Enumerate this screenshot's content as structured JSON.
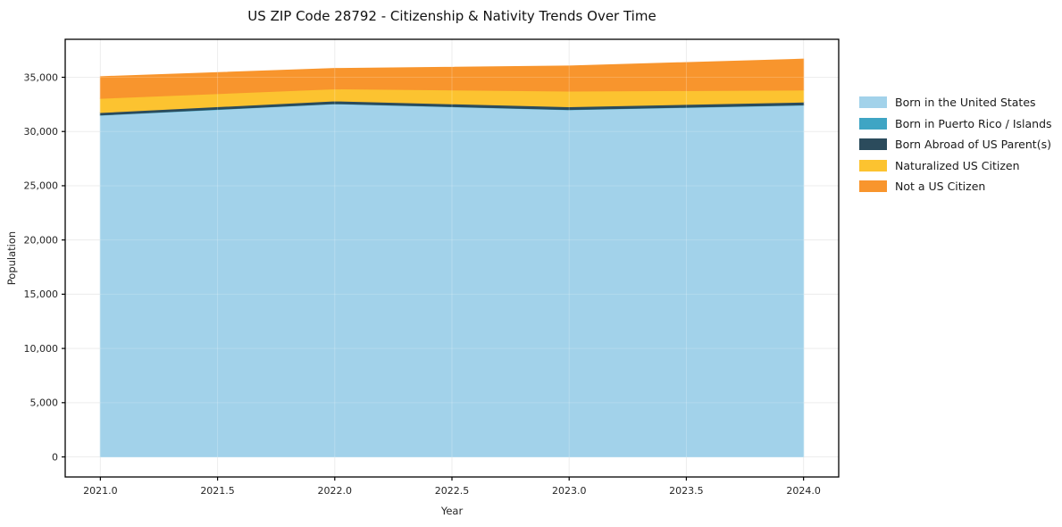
{
  "labels": {
    "title": "US ZIP Code 28792 - Citizenship & Nativity Trends Over Time",
    "xlabel": "Year",
    "ylabel": "Population"
  },
  "chart_data": {
    "type": "area",
    "stacked": true,
    "title": "US ZIP Code 28792 - Citizenship & Nativity Trends Over Time",
    "xlabel": "Year",
    "ylabel": "Population",
    "x": [
      2021,
      2022,
      2023,
      2024
    ],
    "series": [
      {
        "name": "Born in the United States",
        "color": "#a2d2ea",
        "values": [
          31500,
          32550,
          32000,
          32430
        ]
      },
      {
        "name": "Born in Puerto Rico / Islands",
        "color": "#3fa5c4",
        "values": [
          25,
          25,
          25,
          25
        ]
      },
      {
        "name": "Born Abroad of US Parent(s)",
        "color": "#2b4b5c",
        "values": [
          220,
          245,
          255,
          260
        ]
      },
      {
        "name": "Naturalized US Citizen",
        "color": "#fcc330",
        "values": [
          1310,
          1110,
          1440,
          1110
        ]
      },
      {
        "name": "Not a US Citizen",
        "color": "#f8952d",
        "values": [
          2000,
          1880,
          2320,
          2850
        ]
      }
    ],
    "totals": [
      35055,
      35810,
      36040,
      36675
    ],
    "xticks": [
      2021.0,
      2021.5,
      2022.0,
      2022.5,
      2023.0,
      2023.5,
      2024.0
    ],
    "yticks": [
      0,
      5000,
      10000,
      15000,
      20000,
      25000,
      30000,
      35000
    ],
    "xlim": [
      2020.85,
      2024.15
    ],
    "ylim": [
      -1850,
      38500
    ],
    "grid": true,
    "legend_position": "right",
    "spine_color": "#000000",
    "grid_color": "#e9e9e9"
  }
}
